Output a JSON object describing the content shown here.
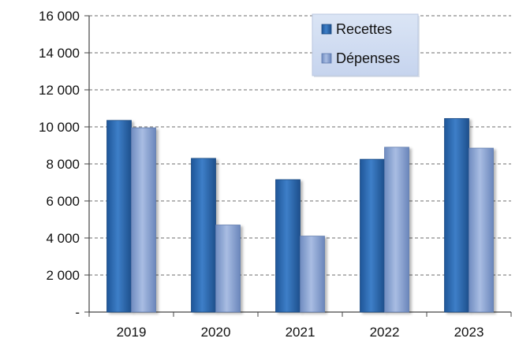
{
  "chart_data": {
    "type": "bar",
    "title": "",
    "xlabel": "",
    "ylabel": "",
    "categories": [
      "2019",
      "2020",
      "2021",
      "2022",
      "2023"
    ],
    "series": [
      {
        "name": "Recettes",
        "values": [
          10350,
          8300,
          7150,
          8250,
          10450
        ],
        "color": "#2f6fb6"
      },
      {
        "name": "Dépenses",
        "values": [
          9950,
          4700,
          4100,
          8900,
          8850
        ],
        "color": "#8fa8d6"
      }
    ],
    "ylim": [
      0,
      16000
    ],
    "y_ticks": [
      0,
      2000,
      4000,
      6000,
      8000,
      10000,
      12000,
      14000,
      16000
    ],
    "y_tick_labels": [
      "-",
      "2 000",
      "4 000",
      "6 000",
      "8 000",
      "10 000",
      "12 000",
      "14 000",
      "16 000"
    ],
    "grid": true,
    "legend_position": "top-right"
  }
}
